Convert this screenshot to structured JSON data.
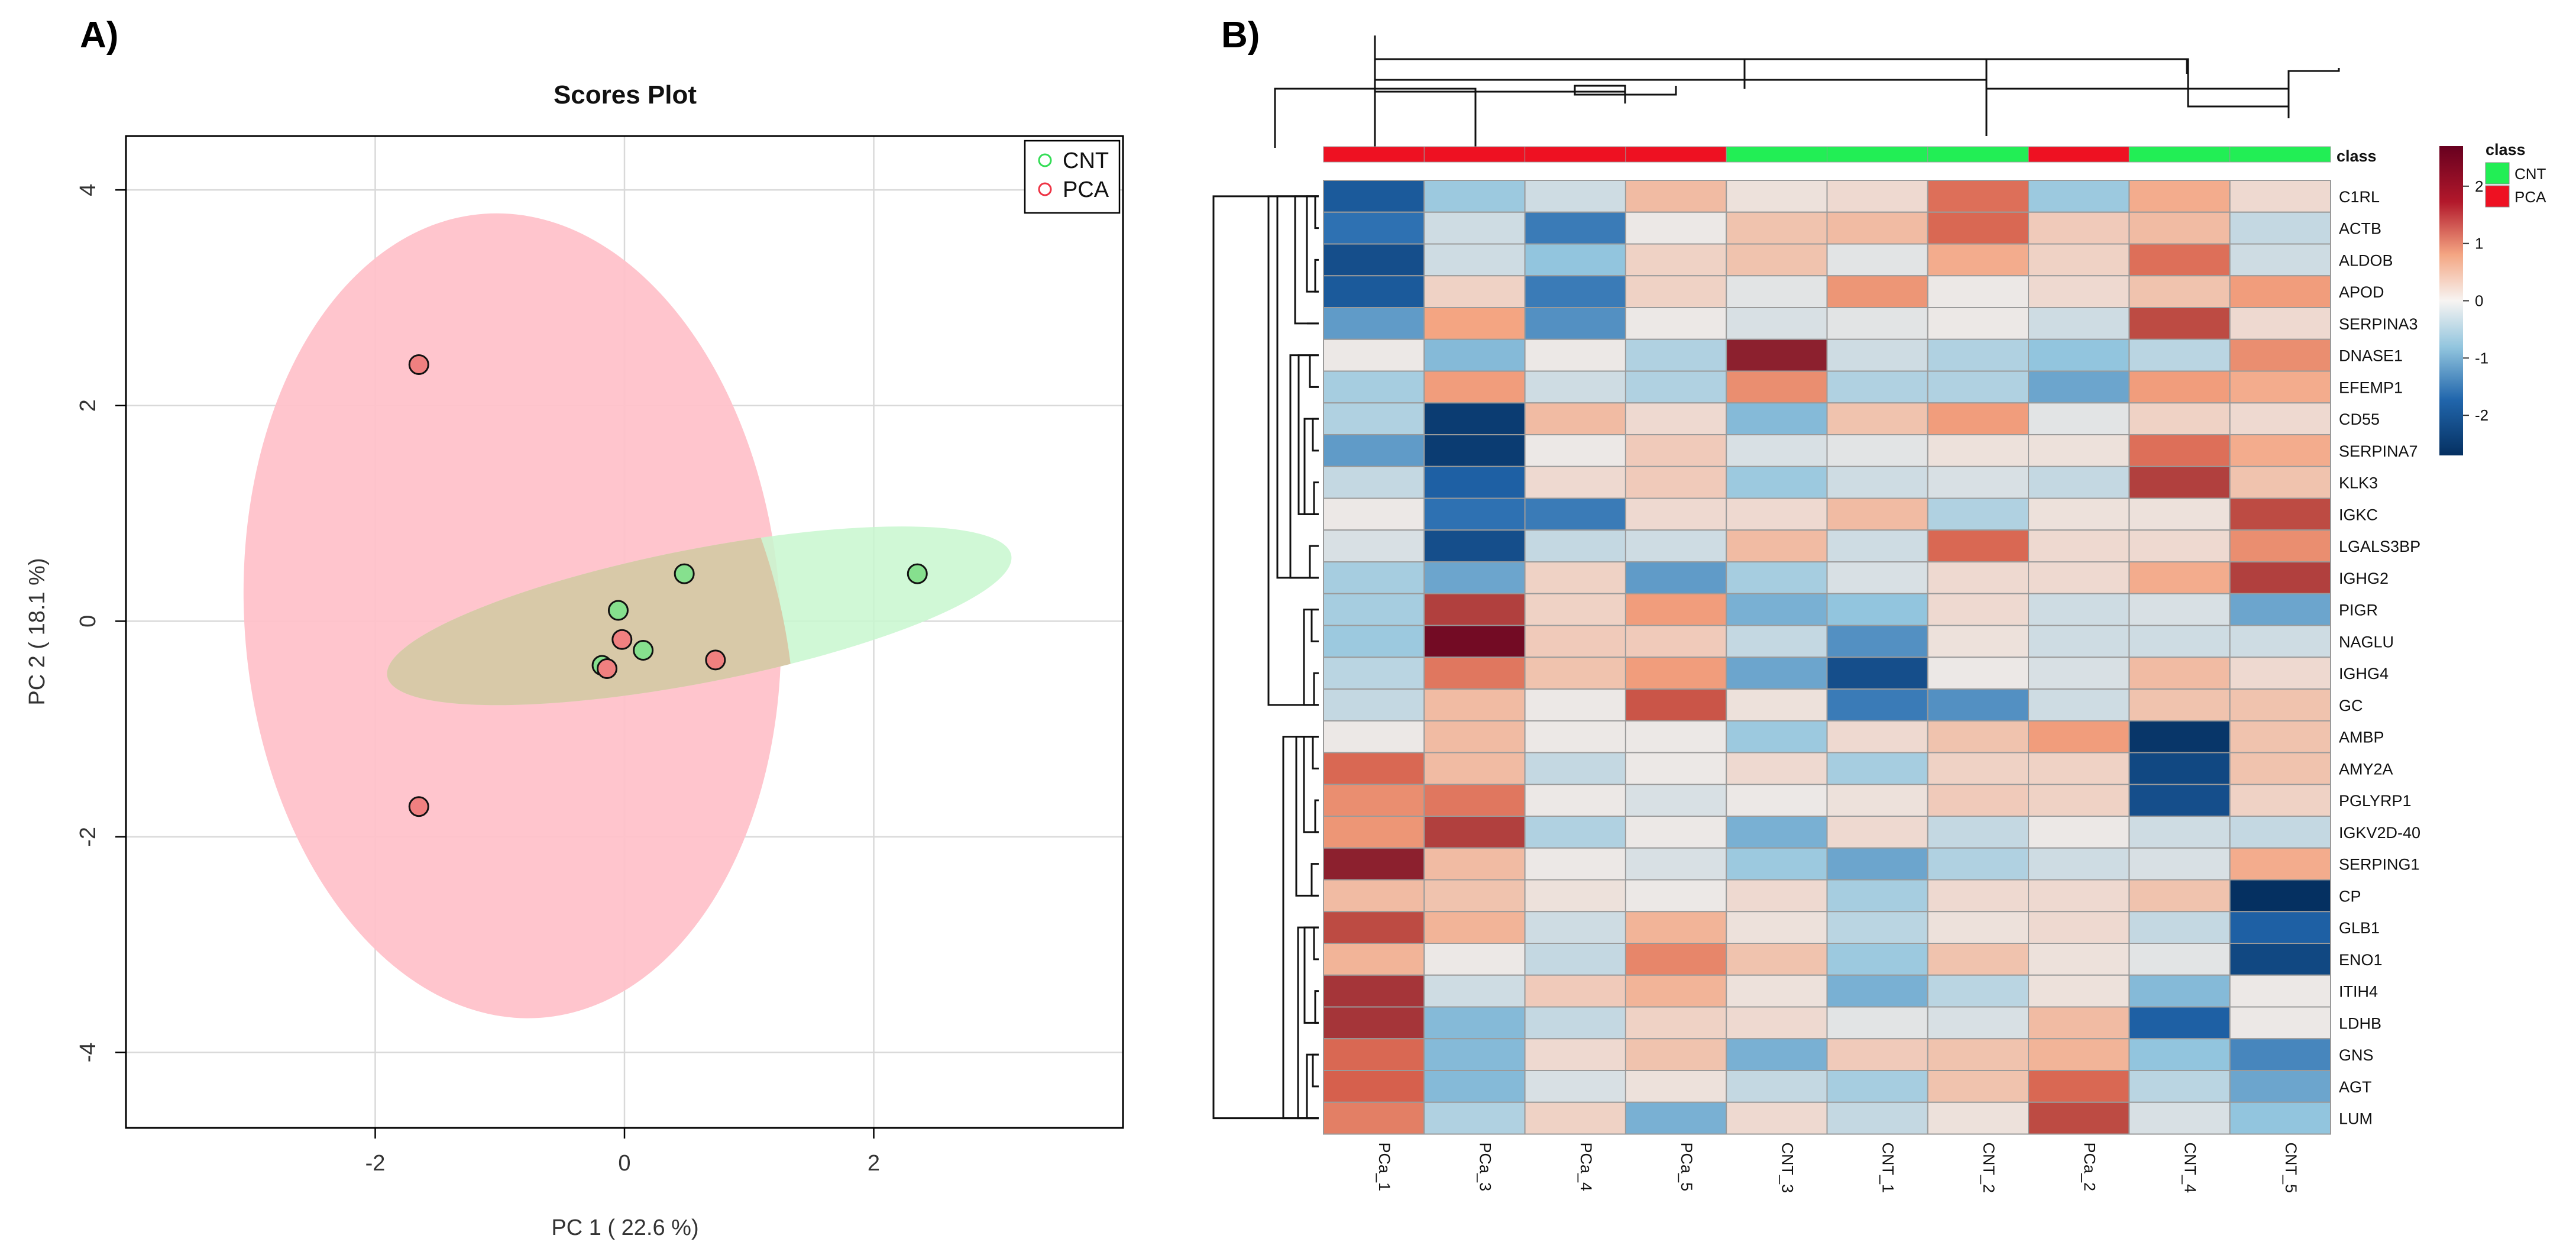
{
  "panel_a_label": "A)",
  "panel_b_label": "B)",
  "chart_data": [
    {
      "type": "scatter",
      "title": "Scores Plot",
      "xlabel": "PC 1 ( 22.6 %)",
      "ylabel": "PC 2 ( 18.1 %)",
      "xlim": [
        -4.0,
        4.0
      ],
      "ylim": [
        -4.7,
        4.5
      ],
      "xticks": [
        -2,
        0,
        2
      ],
      "yticks": [
        -4,
        -2,
        0,
        2,
        4
      ],
      "grid": true,
      "legend_position": "top-right",
      "series": [
        {
          "name": "CNT",
          "color": "#86e08e",
          "legend_color": "#33dd55",
          "ellipse_color": "#c8f7cf",
          "points": [
            [
              0.48,
              0.44
            ],
            [
              2.35,
              0.44
            ],
            [
              -0.05,
              0.1
            ],
            [
              0.15,
              -0.27
            ],
            [
              -0.18,
              -0.41
            ]
          ]
        },
        {
          "name": "PCA",
          "color": "#f08080",
          "legend_color": "#ee3344",
          "ellipse_color": "#ffc2ca",
          "points": [
            [
              -1.65,
              2.38
            ],
            [
              -1.65,
              -1.72
            ],
            [
              0.73,
              -0.36
            ],
            [
              -0.02,
              -0.17
            ],
            [
              -0.14,
              -0.44
            ]
          ]
        }
      ]
    },
    {
      "type": "heatmap",
      "columns": [
        "PCa_1",
        "PCa_3",
        "PCa_4",
        "PCa_5",
        "CNT_3",
        "CNT_1",
        "CNT_2",
        "PCa_2",
        "CNT_4",
        "CNT_5"
      ],
      "column_class": [
        "PCA",
        "PCA",
        "PCA",
        "PCA",
        "CNT",
        "CNT",
        "CNT",
        "PCA",
        "CNT",
        "CNT"
      ],
      "rows": [
        "C1RL",
        "ACTB",
        "ALDOB",
        "APOD",
        "SERPINA3",
        "DNASE1",
        "EFEMP1",
        "CD55",
        "SERPINA7",
        "KLK3",
        "IGKC",
        "LGALS3BP",
        "IGHG2",
        "PIGR",
        "NAGLU",
        "IGHG4",
        "GC",
        "AMBP",
        "AMY2A",
        "PGLYRP1",
        "IGKV2D-40",
        "SERPING1",
        "CP",
        "GLB1",
        "ENO1",
        "ITIH4",
        "LDHB",
        "GNS",
        "AGT",
        "LUM"
      ],
      "values": [
        [
          -2.0,
          -0.8,
          -0.3,
          0.6,
          0.1,
          0.2,
          1.6,
          -0.8,
          0.8,
          0.2
        ],
        [
          -1.7,
          -0.3,
          -1.6,
          0.0,
          0.5,
          0.6,
          1.7,
          0.4,
          0.6,
          -0.4
        ],
        [
          -2.2,
          -0.3,
          -0.9,
          0.3,
          0.5,
          -0.1,
          0.8,
          0.3,
          1.6,
          -0.3
        ],
        [
          -2.0,
          0.3,
          -1.6,
          0.3,
          -0.1,
          1.1,
          0.0,
          0.2,
          0.5,
          1.0
        ],
        [
          -1.3,
          0.9,
          -1.4,
          0.0,
          -0.2,
          -0.1,
          0.0,
          -0.3,
          2.0,
          0.2
        ],
        [
          0.0,
          -1.0,
          0.0,
          -0.6,
          2.4,
          -0.3,
          -0.6,
          -0.9,
          -0.5,
          1.2
        ],
        [
          -0.7,
          1.0,
          -0.3,
          -0.6,
          1.2,
          -0.6,
          -0.6,
          -1.2,
          1.0,
          0.8
        ],
        [
          -0.6,
          -2.5,
          0.6,
          0.2,
          -1.0,
          0.5,
          1.0,
          -0.1,
          0.3,
          0.2
        ],
        [
          -1.3,
          -2.5,
          0.0,
          0.4,
          -0.2,
          -0.1,
          0.1,
          0.1,
          1.6,
          0.8
        ],
        [
          -0.4,
          -1.9,
          0.2,
          0.4,
          -0.8,
          -0.3,
          -0.2,
          -0.4,
          2.1,
          0.5
        ],
        [
          0.0,
          -1.7,
          -1.6,
          0.2,
          0.2,
          0.6,
          -0.6,
          0.1,
          0.1,
          2.0
        ],
        [
          -0.2,
          -2.2,
          -0.4,
          -0.3,
          0.6,
          -0.3,
          1.7,
          0.2,
          0.2,
          1.2
        ],
        [
          -0.7,
          -1.2,
          0.3,
          -1.3,
          -0.7,
          -0.2,
          0.2,
          0.2,
          0.8,
          2.1
        ],
        [
          -0.7,
          2.1,
          0.3,
          1.0,
          -1.1,
          -0.9,
          0.2,
          -0.3,
          -0.2,
          -1.2
        ],
        [
          -0.8,
          2.6,
          0.4,
          0.4,
          -0.4,
          -1.4,
          0.1,
          -0.3,
          -0.3,
          -0.3
        ],
        [
          -0.5,
          1.5,
          0.5,
          1.0,
          -1.2,
          -2.2,
          0.0,
          -0.2,
          0.6,
          0.2
        ],
        [
          -0.4,
          0.6,
          0.0,
          1.9,
          0.1,
          -1.6,
          -1.4,
          -0.3,
          0.5,
          0.5
        ],
        [
          0.0,
          0.6,
          0.0,
          0.0,
          -0.8,
          0.2,
          0.5,
          1.0,
          -2.6,
          0.5
        ],
        [
          1.7,
          0.6,
          -0.4,
          0.0,
          0.2,
          -0.7,
          0.3,
          0.3,
          -2.3,
          0.5
        ],
        [
          1.2,
          1.5,
          0.0,
          -0.2,
          0.0,
          0.1,
          0.4,
          0.3,
          -2.2,
          0.3
        ],
        [
          1.1,
          2.1,
          -0.6,
          0.0,
          -1.1,
          0.2,
          -0.4,
          0.0,
          -0.3,
          -0.4
        ],
        [
          2.4,
          0.6,
          0.0,
          -0.2,
          -0.8,
          -1.2,
          -0.6,
          -0.3,
          -0.2,
          0.8
        ],
        [
          0.6,
          0.5,
          0.1,
          0.0,
          0.2,
          -0.7,
          0.2,
          0.2,
          0.5,
          -2.7
        ],
        [
          2.0,
          0.7,
          -0.3,
          0.7,
          0.1,
          -0.5,
          0.1,
          0.2,
          -0.4,
          -1.9
        ],
        [
          0.7,
          0.0,
          -0.4,
          1.3,
          0.5,
          -0.8,
          0.5,
          0.1,
          -0.1,
          -2.3
        ],
        [
          2.2,
          -0.3,
          0.4,
          0.7,
          0.1,
          -1.1,
          -0.5,
          0.1,
          -1.0,
          0.0
        ],
        [
          2.2,
          -1.0,
          -0.4,
          0.3,
          0.2,
          -0.1,
          -0.2,
          0.6,
          -1.9,
          0.0
        ],
        [
          1.7,
          -1.0,
          0.2,
          0.5,
          -1.1,
          0.4,
          0.5,
          0.7,
          -0.9,
          -1.5
        ],
        [
          1.8,
          -1.0,
          -0.2,
          0.1,
          -0.4,
          -0.7,
          0.5,
          1.7,
          -0.5,
          -1.2
        ],
        [
          1.4,
          -0.6,
          0.3,
          -1.1,
          0.2,
          -0.4,
          0.1,
          2.0,
          -0.2,
          -0.9
        ]
      ],
      "class_legend": {
        "title": "class",
        "items": [
          {
            "label": "CNT",
            "color": "#22ee55"
          },
          {
            "label": "PCA",
            "color": "#ee1122"
          }
        ]
      },
      "class_row_label": "class",
      "colorbar": {
        "min": -2.7,
        "max": 2.7,
        "ticks": [
          2,
          1,
          0,
          -1,
          -2
        ]
      }
    }
  ]
}
